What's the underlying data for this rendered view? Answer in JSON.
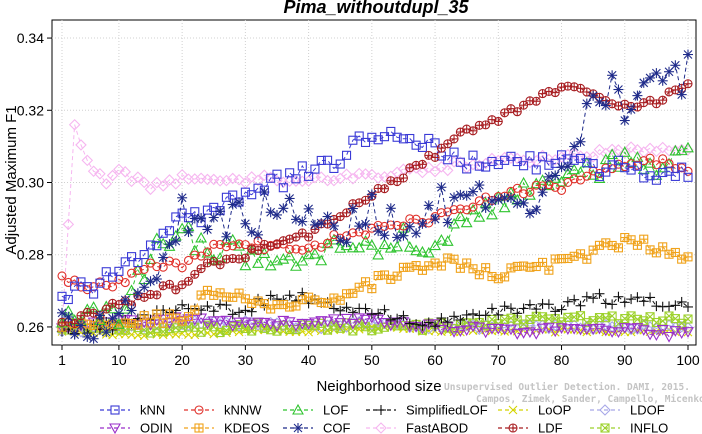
{
  "chart_data": {
    "type": "line",
    "title": "Pima_withoutdupl_35",
    "xlabel": "Neighborhood size",
    "ylabel": "Adjusted Maximum F1",
    "xlim": [
      0,
      100
    ],
    "ylim": [
      0.255,
      0.345
    ],
    "xticks": [
      1,
      10,
      20,
      30,
      40,
      50,
      60,
      70,
      80,
      90,
      100
    ],
    "yticks": [
      0.26,
      0.28,
      0.3,
      0.32,
      0.34
    ],
    "ytick_labels": [
      "0.26",
      "0.28",
      "0.30",
      "0.32",
      "0.34"
    ],
    "grid": true,
    "legend_position": "bottom",
    "watermark_lines": [
      "Unsupervised Outlier Detection. DAMI, 2015.",
      "Campos, Zimek, Sander, Campello, Micenkova, Schubert, Assent, Houle"
    ],
    "series": [
      {
        "name": "kNN",
        "color": "#3a3ad6",
        "marker": "square",
        "dash": "4,3",
        "keypoints": [
          [
            1,
            0.268
          ],
          [
            5,
            0.271
          ],
          [
            10,
            0.274
          ],
          [
            15,
            0.283
          ],
          [
            20,
            0.29
          ],
          [
            25,
            0.292
          ],
          [
            30,
            0.296
          ],
          [
            35,
            0.3
          ],
          [
            40,
            0.303
          ],
          [
            45,
            0.306
          ],
          [
            48,
            0.313
          ],
          [
            50,
            0.313
          ],
          [
            55,
            0.314
          ],
          [
            60,
            0.309
          ],
          [
            65,
            0.306
          ],
          [
            70,
            0.306
          ],
          [
            75,
            0.305
          ],
          [
            80,
            0.307
          ],
          [
            85,
            0.303
          ],
          [
            90,
            0.304
          ],
          [
            95,
            0.303
          ],
          [
            100,
            0.302
          ]
        ]
      },
      {
        "name": "kNNW",
        "color": "#e0302a",
        "marker": "circle",
        "dash": "4,3",
        "keypoints": [
          [
            1,
            0.274
          ],
          [
            5,
            0.271
          ],
          [
            10,
            0.272
          ],
          [
            15,
            0.278
          ],
          [
            20,
            0.277
          ],
          [
            25,
            0.282
          ],
          [
            30,
            0.283
          ],
          [
            35,
            0.282
          ],
          [
            40,
            0.282
          ],
          [
            45,
            0.285
          ],
          [
            50,
            0.287
          ],
          [
            55,
            0.289
          ],
          [
            60,
            0.29
          ],
          [
            65,
            0.293
          ],
          [
            70,
            0.296
          ],
          [
            75,
            0.298
          ],
          [
            80,
            0.299
          ],
          [
            85,
            0.303
          ],
          [
            90,
            0.305
          ],
          [
            95,
            0.306
          ],
          [
            100,
            0.304
          ]
        ]
      },
      {
        "name": "LOF",
        "color": "#2fc42f",
        "marker": "triangle",
        "dash": "4,3",
        "keypoints": [
          [
            1,
            0.261
          ],
          [
            5,
            0.262
          ],
          [
            10,
            0.263
          ],
          [
            15,
            0.28
          ],
          [
            20,
            0.286
          ],
          [
            25,
            0.282
          ],
          [
            30,
            0.28
          ],
          [
            35,
            0.277
          ],
          [
            40,
            0.279
          ],
          [
            45,
            0.283
          ],
          [
            50,
            0.28
          ],
          [
            55,
            0.284
          ],
          [
            60,
            0.282
          ],
          [
            65,
            0.289
          ],
          [
            70,
            0.294
          ],
          [
            75,
            0.297
          ],
          [
            80,
            0.301
          ],
          [
            85,
            0.304
          ],
          [
            90,
            0.305
          ],
          [
            95,
            0.305
          ],
          [
            100,
            0.307
          ]
        ]
      },
      {
        "name": "SimplifiedLOF",
        "color": "#111111",
        "marker": "plus",
        "dash": "4,3",
        "keypoints": [
          [
            1,
            0.259
          ],
          [
            5,
            0.259
          ],
          [
            10,
            0.261
          ],
          [
            15,
            0.263
          ],
          [
            20,
            0.266
          ],
          [
            25,
            0.265
          ],
          [
            30,
            0.265
          ],
          [
            35,
            0.268
          ],
          [
            40,
            0.268
          ],
          [
            45,
            0.265
          ],
          [
            50,
            0.264
          ],
          [
            55,
            0.262
          ],
          [
            60,
            0.261
          ],
          [
            65,
            0.262
          ],
          [
            70,
            0.264
          ],
          [
            75,
            0.265
          ],
          [
            80,
            0.266
          ],
          [
            85,
            0.268
          ],
          [
            90,
            0.267
          ],
          [
            95,
            0.267
          ],
          [
            100,
            0.266
          ]
        ]
      },
      {
        "name": "LoOP",
        "color": "#d4d400",
        "marker": "cross",
        "dash": "4,3",
        "keypoints": [
          [
            1,
            0.259
          ],
          [
            10,
            0.258
          ],
          [
            20,
            0.258
          ],
          [
            30,
            0.259
          ],
          [
            40,
            0.259
          ],
          [
            50,
            0.26
          ],
          [
            60,
            0.259
          ],
          [
            70,
            0.259
          ],
          [
            80,
            0.259
          ],
          [
            90,
            0.259
          ],
          [
            100,
            0.259
          ]
        ]
      },
      {
        "name": "LDOF",
        "color": "#a8a8e8",
        "marker": "diamond",
        "dash": "4,3",
        "keypoints": [
          [
            1,
            0.259
          ],
          [
            10,
            0.26
          ],
          [
            20,
            0.261
          ],
          [
            30,
            0.261
          ],
          [
            40,
            0.26
          ],
          [
            50,
            0.261
          ],
          [
            60,
            0.26
          ],
          [
            70,
            0.26
          ],
          [
            80,
            0.26
          ],
          [
            90,
            0.26
          ],
          [
            100,
            0.26
          ]
        ]
      },
      {
        "name": "ODIN",
        "color": "#9a2ec9",
        "marker": "triangle-down",
        "dash": "4,3",
        "keypoints": [
          [
            1,
            0.26
          ],
          [
            10,
            0.261
          ],
          [
            20,
            0.262
          ],
          [
            30,
            0.261
          ],
          [
            40,
            0.261
          ],
          [
            50,
            0.262
          ],
          [
            60,
            0.26
          ],
          [
            70,
            0.259
          ],
          [
            80,
            0.259
          ],
          [
            90,
            0.259
          ],
          [
            100,
            0.258
          ]
        ]
      },
      {
        "name": "KDEOS",
        "color": "#f0a21a",
        "marker": "boxplus",
        "dash": "4,3",
        "keypoints": [
          [
            1,
            0.26
          ],
          [
            10,
            0.261
          ],
          [
            15,
            0.262
          ],
          [
            20,
            0.263
          ],
          [
            25,
            0.27
          ],
          [
            30,
            0.267
          ],
          [
            35,
            0.266
          ],
          [
            40,
            0.267
          ],
          [
            45,
            0.268
          ],
          [
            50,
            0.272
          ],
          [
            55,
            0.275
          ],
          [
            60,
            0.278
          ],
          [
            65,
            0.277
          ],
          [
            70,
            0.275
          ],
          [
            75,
            0.276
          ],
          [
            80,
            0.278
          ],
          [
            85,
            0.28
          ],
          [
            90,
            0.284
          ],
          [
            95,
            0.282
          ],
          [
            100,
            0.279
          ]
        ]
      },
      {
        "name": "COF",
        "color": "#1f2b8a",
        "marker": "star",
        "dash": "4,3",
        "keypoints": [
          [
            1,
            0.262
          ],
          [
            5,
            0.261
          ],
          [
            10,
            0.265
          ],
          [
            15,
            0.272
          ],
          [
            20,
            0.291
          ],
          [
            25,
            0.291
          ],
          [
            30,
            0.289
          ],
          [
            35,
            0.294
          ],
          [
            40,
            0.289
          ],
          [
            45,
            0.286
          ],
          [
            50,
            0.292
          ],
          [
            55,
            0.288
          ],
          [
            60,
            0.293
          ],
          [
            65,
            0.295
          ],
          [
            70,
            0.292
          ],
          [
            75,
            0.291
          ],
          [
            80,
            0.3
          ],
          [
            85,
            0.322
          ],
          [
            88,
            0.329
          ],
          [
            90,
            0.322
          ],
          [
            95,
            0.325
          ],
          [
            100,
            0.331
          ]
        ]
      },
      {
        "name": "FastABOD",
        "color": "#f6b6f0",
        "marker": "diamond",
        "dash": "4,3",
        "keypoints": [
          [
            1,
            0.26
          ],
          [
            3,
            0.317
          ],
          [
            5,
            0.305
          ],
          [
            8,
            0.3
          ],
          [
            10,
            0.303
          ],
          [
            15,
            0.299
          ],
          [
            20,
            0.301
          ],
          [
            25,
            0.301
          ],
          [
            30,
            0.301
          ],
          [
            40,
            0.301
          ],
          [
            50,
            0.302
          ],
          [
            60,
            0.304
          ],
          [
            70,
            0.306
          ],
          [
            80,
            0.307
          ],
          [
            90,
            0.309
          ],
          [
            100,
            0.31
          ]
        ]
      },
      {
        "name": "LDF",
        "color": "#a81e22",
        "marker": "circleplus",
        "dash": "4,3",
        "keypoints": [
          [
            1,
            0.261
          ],
          [
            10,
            0.266
          ],
          [
            15,
            0.269
          ],
          [
            20,
            0.272
          ],
          [
            25,
            0.278
          ],
          [
            30,
            0.28
          ],
          [
            35,
            0.284
          ],
          [
            40,
            0.286
          ],
          [
            45,
            0.291
          ],
          [
            50,
            0.297
          ],
          [
            55,
            0.302
          ],
          [
            60,
            0.308
          ],
          [
            65,
            0.314
          ],
          [
            70,
            0.318
          ],
          [
            75,
            0.322
          ],
          [
            80,
            0.327
          ],
          [
            85,
            0.325
          ],
          [
            90,
            0.321
          ],
          [
            95,
            0.323
          ],
          [
            100,
            0.327
          ]
        ]
      },
      {
        "name": "INFLO",
        "color": "#9cd12a",
        "marker": "boxcross",
        "dash": "4,3",
        "keypoints": [
          [
            1,
            0.26
          ],
          [
            10,
            0.26
          ],
          [
            20,
            0.259
          ],
          [
            30,
            0.26
          ],
          [
            40,
            0.26
          ],
          [
            50,
            0.26
          ],
          [
            60,
            0.26
          ],
          [
            70,
            0.262
          ],
          [
            80,
            0.262
          ],
          [
            90,
            0.262
          ],
          [
            100,
            0.262
          ]
        ]
      }
    ]
  }
}
